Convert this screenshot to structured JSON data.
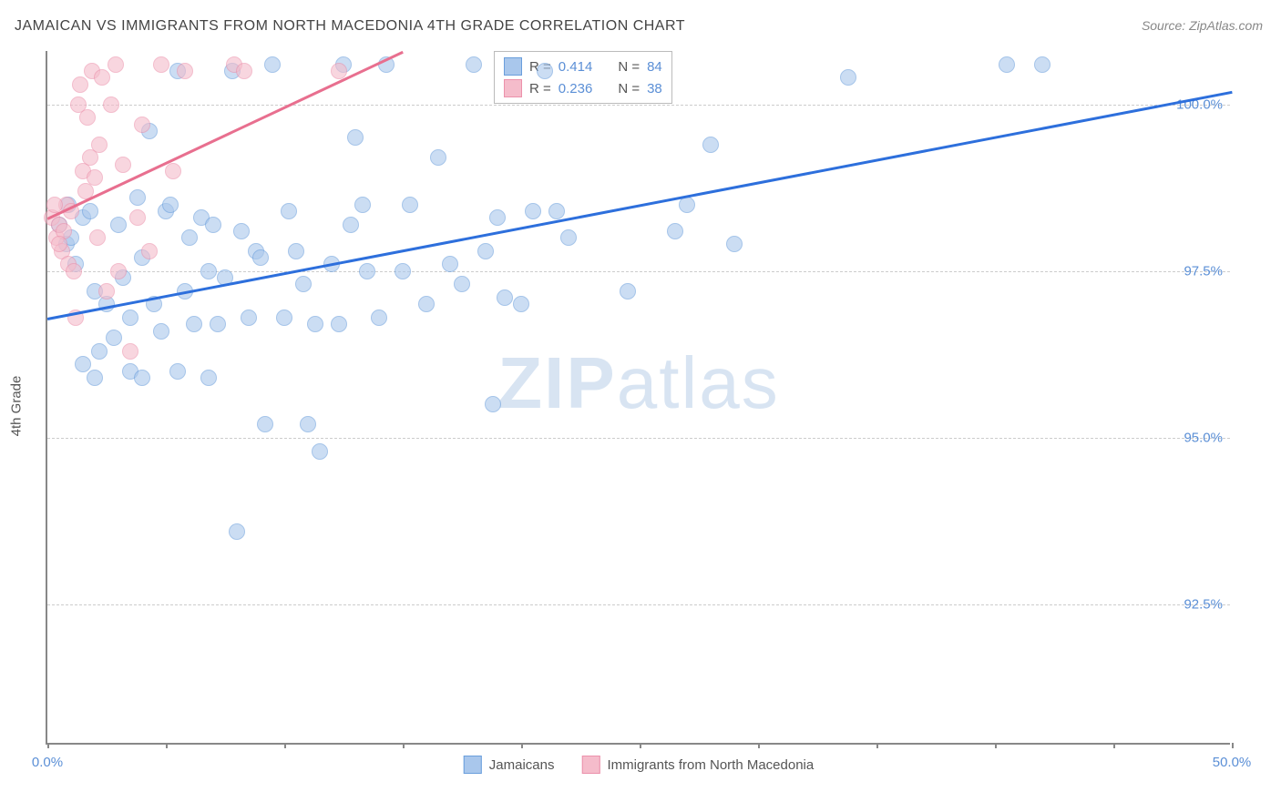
{
  "title": "JAMAICAN VS IMMIGRANTS FROM NORTH MACEDONIA 4TH GRADE CORRELATION CHART",
  "source": "Source: ZipAtlas.com",
  "watermark_a": "ZIP",
  "watermark_b": "atlas",
  "y_axis_label": "4th Grade",
  "chart": {
    "type": "scatter",
    "background_color": "#ffffff",
    "grid_color": "#cccccc",
    "axis_color": "#888888",
    "xlim": [
      0.0,
      50.0
    ],
    "ylim": [
      90.4,
      100.8
    ],
    "xticks": [
      0.0,
      5.0,
      10.0,
      15.0,
      20.0,
      25.0,
      30.0,
      35.0,
      40.0,
      45.0,
      50.0
    ],
    "xtick_labels": {
      "0": "0.0%",
      "50": "50.0%"
    },
    "yticks": [
      92.5,
      95.0,
      97.5,
      100.0
    ],
    "ytick_labels": [
      "92.5%",
      "95.0%",
      "97.5%",
      "100.0%"
    ],
    "marker_radius": 9,
    "marker_opacity": 0.6
  },
  "series": [
    {
      "name": "Jamaicans",
      "color_fill": "#a9c7ec",
      "color_stroke": "#6a9edc",
      "r": "0.414",
      "n": "84",
      "trend": {
        "x1": 0.0,
        "y1": 96.8,
        "x2": 50.0,
        "y2": 100.2,
        "color": "#2d6fdc",
        "width": 2.5
      },
      "points": [
        [
          0.5,
          98.2
        ],
        [
          0.8,
          97.9
        ],
        [
          1.0,
          98.0
        ],
        [
          1.2,
          97.6
        ],
        [
          1.5,
          98.3
        ],
        [
          1.8,
          98.4
        ],
        [
          2.0,
          97.2
        ],
        [
          2.2,
          96.3
        ],
        [
          2.5,
          97.0
        ],
        [
          2.8,
          96.5
        ],
        [
          3.0,
          98.2
        ],
        [
          3.2,
          97.4
        ],
        [
          3.5,
          96.8
        ],
        [
          3.8,
          98.6
        ],
        [
          4.0,
          97.7
        ],
        [
          4.3,
          99.6
        ],
        [
          4.5,
          97.0
        ],
        [
          4.8,
          96.6
        ],
        [
          5.0,
          98.4
        ],
        [
          5.2,
          98.5
        ],
        [
          5.5,
          100.5
        ],
        [
          5.8,
          97.2
        ],
        [
          6.0,
          98.0
        ],
        [
          6.2,
          96.7
        ],
        [
          6.5,
          98.3
        ],
        [
          6.8,
          97.5
        ],
        [
          7.0,
          98.2
        ],
        [
          7.2,
          96.7
        ],
        [
          7.5,
          97.4
        ],
        [
          7.8,
          100.5
        ],
        [
          8.0,
          93.6
        ],
        [
          8.2,
          98.1
        ],
        [
          8.5,
          96.8
        ],
        [
          8.8,
          97.8
        ],
        [
          9.0,
          97.7
        ],
        [
          9.2,
          95.2
        ],
        [
          9.5,
          100.6
        ],
        [
          10.0,
          96.8
        ],
        [
          10.2,
          98.4
        ],
        [
          10.5,
          97.8
        ],
        [
          10.8,
          97.3
        ],
        [
          11.0,
          95.2
        ],
        [
          11.3,
          96.7
        ],
        [
          11.5,
          94.8
        ],
        [
          12.0,
          97.6
        ],
        [
          12.3,
          96.7
        ],
        [
          12.5,
          100.6
        ],
        [
          12.8,
          98.2
        ],
        [
          13.0,
          99.5
        ],
        [
          13.3,
          98.5
        ],
        [
          13.5,
          97.5
        ],
        [
          14.0,
          96.8
        ],
        [
          14.3,
          100.6
        ],
        [
          15.0,
          97.5
        ],
        [
          15.3,
          98.5
        ],
        [
          16.0,
          97.0
        ],
        [
          16.5,
          99.2
        ],
        [
          17.0,
          97.6
        ],
        [
          17.5,
          97.3
        ],
        [
          18.0,
          100.6
        ],
        [
          18.5,
          97.8
        ],
        [
          18.8,
          95.5
        ],
        [
          19.0,
          98.3
        ],
        [
          19.3,
          97.1
        ],
        [
          20.0,
          97.0
        ],
        [
          20.5,
          98.4
        ],
        [
          21.0,
          100.5
        ],
        [
          21.5,
          98.4
        ],
        [
          22.0,
          98.0
        ],
        [
          24.5,
          97.2
        ],
        [
          26.5,
          98.1
        ],
        [
          27.0,
          98.5
        ],
        [
          28.0,
          99.4
        ],
        [
          29.0,
          97.9
        ],
        [
          33.8,
          100.4
        ],
        [
          40.5,
          100.6
        ],
        [
          42.0,
          100.6
        ],
        [
          1.5,
          96.1
        ],
        [
          2.0,
          95.9
        ],
        [
          3.5,
          96.0
        ],
        [
          4.0,
          95.9
        ],
        [
          5.5,
          96.0
        ],
        [
          6.8,
          95.9
        ],
        [
          0.9,
          98.5
        ]
      ]
    },
    {
      "name": "Immigrants from North Macedonia",
      "color_fill": "#f5bccb",
      "color_stroke": "#ec91ab",
      "r": "0.236",
      "n": "38",
      "trend": {
        "x1": 0.0,
        "y1": 98.3,
        "x2": 15.0,
        "y2": 100.8,
        "color": "#e86f8f",
        "width": 2.5
      },
      "points": [
        [
          0.2,
          98.3
        ],
        [
          0.4,
          98.0
        ],
        [
          0.5,
          98.2
        ],
        [
          0.6,
          97.8
        ],
        [
          0.7,
          98.1
        ],
        [
          0.8,
          98.5
        ],
        [
          0.9,
          97.6
        ],
        [
          1.0,
          98.4
        ],
        [
          1.1,
          97.5
        ],
        [
          1.2,
          96.8
        ],
        [
          1.3,
          100.0
        ],
        [
          1.4,
          100.3
        ],
        [
          1.5,
          99.0
        ],
        [
          1.6,
          98.7
        ],
        [
          1.7,
          99.8
        ],
        [
          1.8,
          99.2
        ],
        [
          1.9,
          100.5
        ],
        [
          2.0,
          98.9
        ],
        [
          2.1,
          98.0
        ],
        [
          2.2,
          99.4
        ],
        [
          2.3,
          100.4
        ],
        [
          2.5,
          97.2
        ],
        [
          2.7,
          100.0
        ],
        [
          2.9,
          100.6
        ],
        [
          3.0,
          97.5
        ],
        [
          3.2,
          99.1
        ],
        [
          3.5,
          96.3
        ],
        [
          3.8,
          98.3
        ],
        [
          4.0,
          99.7
        ],
        [
          4.3,
          97.8
        ],
        [
          4.8,
          100.6
        ],
        [
          5.3,
          99.0
        ],
        [
          5.8,
          100.5
        ],
        [
          7.9,
          100.6
        ],
        [
          8.3,
          100.5
        ],
        [
          12.3,
          100.5
        ],
        [
          0.3,
          98.5
        ],
        [
          0.5,
          97.9
        ]
      ]
    }
  ],
  "legend_top": {
    "r_label": "R =",
    "n_label": "N ="
  },
  "legend_bottom": {
    "series1": "Jamaicans",
    "series2": "Immigrants from North Macedonia"
  }
}
